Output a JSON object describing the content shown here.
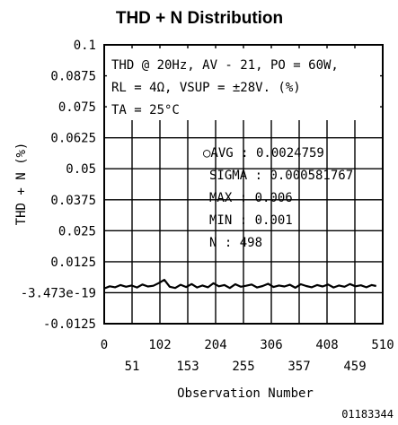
{
  "chart_data": {
    "type": "line",
    "title": "THD + N Distribution",
    "xlabel": "Observation Number",
    "ylabel": "THD + N (%)",
    "xlim": [
      0,
      510
    ],
    "ylim": [
      -0.0125,
      0.1
    ],
    "x_ticks_upper": [
      "0",
      "102",
      "204",
      "306",
      "408",
      "510"
    ],
    "x_ticks_lower": [
      "51",
      "153",
      "255",
      "357",
      "459"
    ],
    "y_ticks": [
      "0.1",
      "0.0875",
      "0.075",
      "0.0625",
      "0.05",
      "0.0375",
      "0.025",
      "0.0125",
      "-3.473e-19",
      "-0.0125"
    ],
    "conditions": {
      "line1": "THD @ 20Hz, AV - 21, PO = 60W,",
      "line2": "RL = 4Ω, VSUP = ±28V. (%)",
      "line3": "TA = 25°C"
    },
    "stats": {
      "avg": "○AVG : 0.0024759",
      "sigma": "SIGMA : 0.000581767",
      "max": "MAX : 0.006",
      "min": "MIN : 0.001",
      "n": "N : 498"
    },
    "series": [
      {
        "x": [
          1,
          10,
          20,
          30,
          40,
          50,
          60,
          70,
          80,
          90,
          100,
          110,
          120,
          130,
          140,
          150,
          160,
          170,
          180,
          190,
          200,
          210,
          220,
          230,
          240,
          250,
          260,
          270,
          280,
          290,
          300,
          310,
          320,
          330,
          340,
          350,
          360,
          370,
          380,
          390,
          400,
          410,
          420,
          430,
          440,
          450,
          460,
          470,
          480,
          490,
          498
        ],
        "values": [
          0.0018,
          0.0026,
          0.0022,
          0.0031,
          0.0024,
          0.0029,
          0.0021,
          0.0033,
          0.0025,
          0.0028,
          0.0039,
          0.0052,
          0.0024,
          0.0019,
          0.0032,
          0.0023,
          0.0035,
          0.0021,
          0.0029,
          0.0022,
          0.0038,
          0.0026,
          0.0031,
          0.0019,
          0.0034,
          0.0024,
          0.0028,
          0.0033,
          0.0021,
          0.0027,
          0.0036,
          0.0023,
          0.0029,
          0.0025,
          0.0032,
          0.002,
          0.0034,
          0.0027,
          0.0022,
          0.0031,
          0.0025,
          0.0033,
          0.0021,
          0.0029,
          0.0024,
          0.0035,
          0.0026,
          0.003,
          0.0022,
          0.0031,
          0.0027
        ]
      }
    ],
    "grid": true,
    "figure_code": "01183344"
  }
}
